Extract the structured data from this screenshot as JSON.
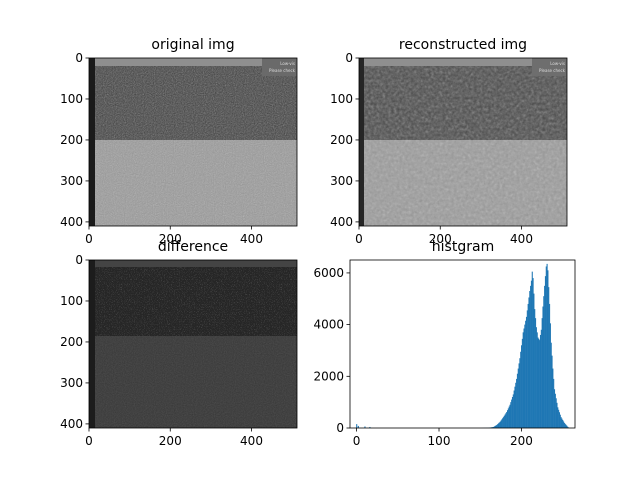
{
  "chart_data": [
    {
      "type": "image",
      "title": "original img",
      "xlim": [
        0,
        512
      ],
      "ylim": [
        410,
        0
      ],
      "xticks": [
        0,
        200,
        400
      ],
      "yticks": [
        0,
        100,
        200,
        300,
        400
      ],
      "content": "grayscale photo: treeline with fence behind grass field",
      "overlay_texts": [
        "Low-vis",
        "Please check"
      ]
    },
    {
      "type": "image",
      "title": "reconstructed img",
      "xlim": [
        0,
        512
      ],
      "ylim": [
        410,
        0
      ],
      "xticks": [
        0,
        200,
        400
      ],
      "yticks": [
        0,
        100,
        200,
        300,
        400
      ],
      "content": "blurred reconstruction of the same photo",
      "overlay_texts": [
        "Low-vis",
        "Please check"
      ]
    },
    {
      "type": "image",
      "title": "difference",
      "xlim": [
        0,
        512
      ],
      "ylim": [
        410,
        0
      ],
      "xticks": [
        0,
        200,
        400
      ],
      "yticks": [
        0,
        100,
        200,
        300,
        400
      ],
      "content": "dark residual image"
    },
    {
      "type": "bar",
      "title": "histgram",
      "xlim": [
        -8,
        265
      ],
      "ylim": [
        0,
        6500
      ],
      "xticks": [
        0,
        100,
        200
      ],
      "yticks": [
        0,
        2000,
        4000,
        6000
      ],
      "color": "#1f77b4",
      "spikes": [
        {
          "x": 0,
          "y": 150
        },
        {
          "x": 2,
          "y": 80
        },
        {
          "x": 10,
          "y": 60
        },
        {
          "x": 16,
          "y": 40
        }
      ],
      "profile": [
        [
          150,
          0
        ],
        [
          160,
          8
        ],
        [
          166,
          40
        ],
        [
          170,
          120
        ],
        [
          174,
          240
        ],
        [
          178,
          420
        ],
        [
          182,
          620
        ],
        [
          186,
          900
        ],
        [
          190,
          1300
        ],
        [
          194,
          1900
        ],
        [
          198,
          2700
        ],
        [
          202,
          3700
        ],
        [
          206,
          4300
        ],
        [
          208,
          4800
        ],
        [
          210,
          5300
        ],
        [
          212,
          5700
        ],
        [
          213,
          6050
        ],
        [
          214,
          5800
        ],
        [
          216,
          4600
        ],
        [
          218,
          3900
        ],
        [
          220,
          3500
        ],
        [
          222,
          3400
        ],
        [
          224,
          3800
        ],
        [
          226,
          4700
        ],
        [
          228,
          5500
        ],
        [
          230,
          6250
        ],
        [
          231,
          6350
        ],
        [
          232,
          6100
        ],
        [
          234,
          4800
        ],
        [
          236,
          3300
        ],
        [
          238,
          2300
        ],
        [
          240,
          1500
        ],
        [
          244,
          800
        ],
        [
          248,
          420
        ],
        [
          252,
          200
        ],
        [
          256,
          50
        ],
        [
          258,
          0
        ]
      ]
    }
  ]
}
